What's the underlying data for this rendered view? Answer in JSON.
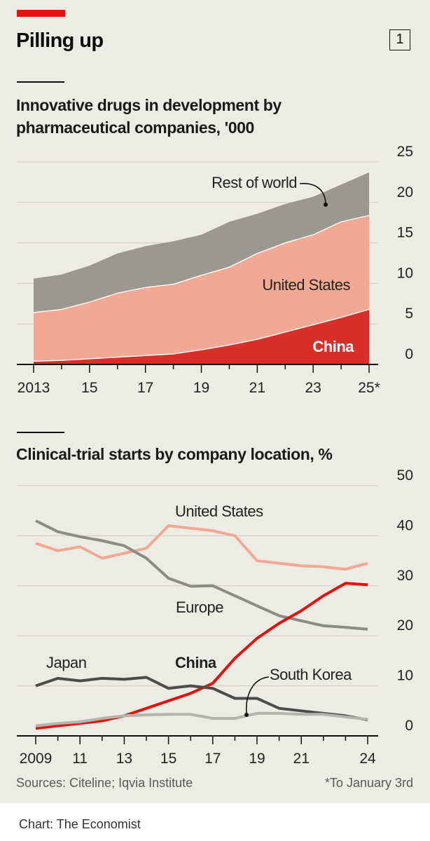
{
  "header": {
    "title": "Pilling up",
    "badge": "1",
    "accent_color": "#e3120b"
  },
  "chart_data": [
    {
      "type": "area",
      "stacked": true,
      "title": "Innovative drugs in development by pharmaceutical companies, '000",
      "subtitle_lines": [
        "Innovative drugs in development by",
        "pharmaceutical companies, '000"
      ],
      "x": [
        2013,
        2014,
        2015,
        2016,
        2017,
        2018,
        2019,
        2020,
        2021,
        2022,
        2023,
        2024,
        2025
      ],
      "x_tick_labels": [
        "2013",
        "15",
        "17",
        "19",
        "21",
        "23",
        "25*"
      ],
      "x_tick_values": [
        2013,
        2015,
        2017,
        2019,
        2021,
        2023,
        2025
      ],
      "y_ticks": [
        "0",
        "5",
        "10",
        "15",
        "20",
        "25"
      ],
      "ylim": [
        0,
        25
      ],
      "series": [
        {
          "name": "China",
          "color": "#d7302a",
          "values": [
            0.4,
            0.5,
            0.7,
            0.9,
            1.1,
            1.3,
            1.8,
            2.4,
            3.1,
            4.0,
            4.9,
            5.8,
            6.8
          ]
        },
        {
          "name": "United States",
          "color": "#f2a993",
          "values": [
            6.0,
            6.3,
            7.0,
            7.9,
            8.4,
            8.6,
            9.2,
            9.6,
            10.6,
            11.0,
            11.1,
            11.8,
            11.6
          ]
        },
        {
          "name": "Rest of world",
          "color": "#9a9890",
          "values": [
            4.2,
            4.3,
            4.5,
            4.9,
            5.1,
            5.3,
            5.0,
            5.6,
            4.9,
            4.8,
            4.7,
            4.6,
            5.3
          ]
        }
      ],
      "labels": {
        "rest_of_world": "Rest of world",
        "united_states": "United States",
        "china": "China"
      }
    },
    {
      "type": "line",
      "title": "Clinical-trial starts by company location, %",
      "x": [
        2009,
        2010,
        2011,
        2012,
        2013,
        2014,
        2015,
        2016,
        2017,
        2018,
        2019,
        2020,
        2021,
        2022,
        2023,
        2024
      ],
      "x_tick_labels": [
        "2009",
        "11",
        "13",
        "15",
        "17",
        "19",
        "21",
        "24"
      ],
      "x_tick_values": [
        2009,
        2011,
        2013,
        2015,
        2017,
        2019,
        2021,
        2024
      ],
      "y_ticks": [
        "0",
        "10",
        "20",
        "30",
        "40",
        "50"
      ],
      "ylim": [
        0,
        50
      ],
      "series": [
        {
          "name": "United States",
          "color": "#f2a993",
          "values": [
            38.5,
            37.0,
            37.8,
            35.5,
            36.5,
            37.5,
            42.0,
            41.5,
            41.0,
            40.0,
            35.0,
            34.5,
            34.0,
            33.8,
            33.3,
            34.5
          ]
        },
        {
          "name": "Europe",
          "color": "#8d8b86",
          "values": [
            43.0,
            40.8,
            39.8,
            39.0,
            38.0,
            35.5,
            31.5,
            29.9,
            30.0,
            28.0,
            26.0,
            24.0,
            23.0,
            22.0,
            21.7,
            21.3
          ]
        },
        {
          "name": "China",
          "color": "#e3120b",
          "values": [
            1.5,
            2.0,
            2.5,
            3.0,
            4.0,
            5.5,
            7.0,
            8.5,
            10.5,
            15.5,
            19.5,
            22.5,
            25.0,
            28.0,
            30.5,
            30.2
          ]
        },
        {
          "name": "Japan",
          "color": "#4d4c4a",
          "values": [
            10.0,
            11.5,
            11.0,
            11.5,
            11.3,
            11.7,
            9.5,
            10.0,
            9.5,
            7.5,
            7.5,
            5.5,
            5.0,
            4.5,
            4.0,
            3.2
          ]
        },
        {
          "name": "South Korea",
          "color": "#b5b3ae",
          "values": [
            2.0,
            2.5,
            2.8,
            3.5,
            4.0,
            4.2,
            4.3,
            4.3,
            3.5,
            3.5,
            4.5,
            4.5,
            4.3,
            4.3,
            3.8,
            3.3
          ]
        }
      ],
      "labels": {
        "united_states": "United States",
        "europe": "Europe",
        "japan": "Japan",
        "china": "China",
        "south_korea": "South Korea"
      }
    }
  ],
  "footer": {
    "sources": "Sources: Citeline; Iqvia Institute",
    "footnote": "*To January 3rd",
    "credit": "Chart: The Economist"
  }
}
